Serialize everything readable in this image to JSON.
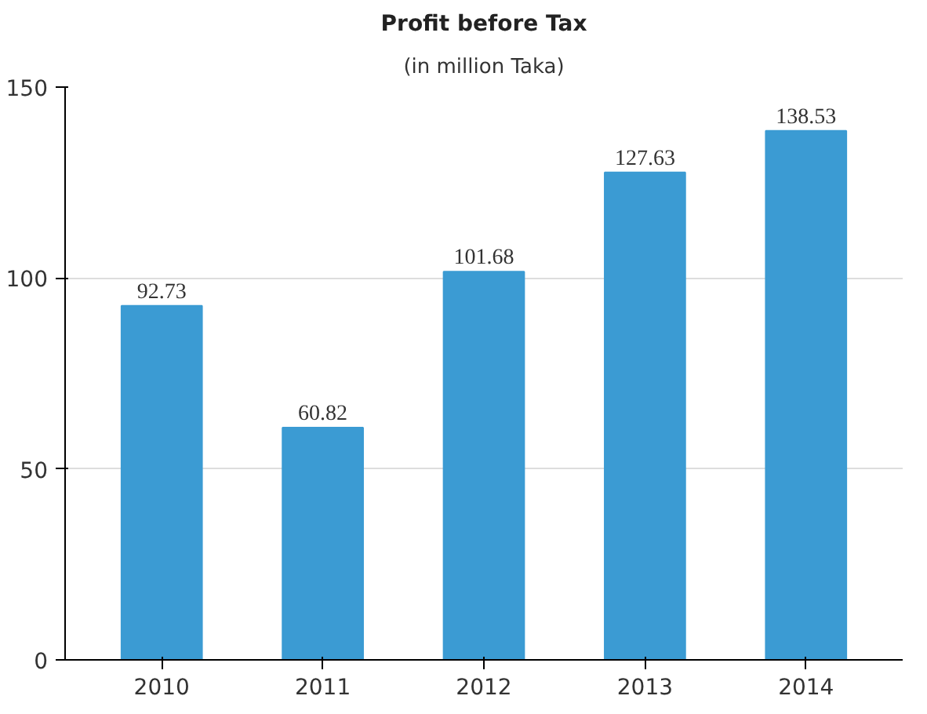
{
  "chart_data": {
    "type": "bar",
    "title": "Profit before Tax",
    "subtitle": "(in million Taka)",
    "categories": [
      "2010",
      "2011",
      "2012",
      "2013",
      "2014"
    ],
    "values": [
      92.73,
      60.82,
      101.68,
      127.63,
      138.53
    ],
    "color": "#3b9bd3",
    "ylim": [
      0,
      150
    ],
    "yticks": [
      0,
      50,
      100,
      150
    ],
    "grid": true,
    "data_labels": true
  }
}
